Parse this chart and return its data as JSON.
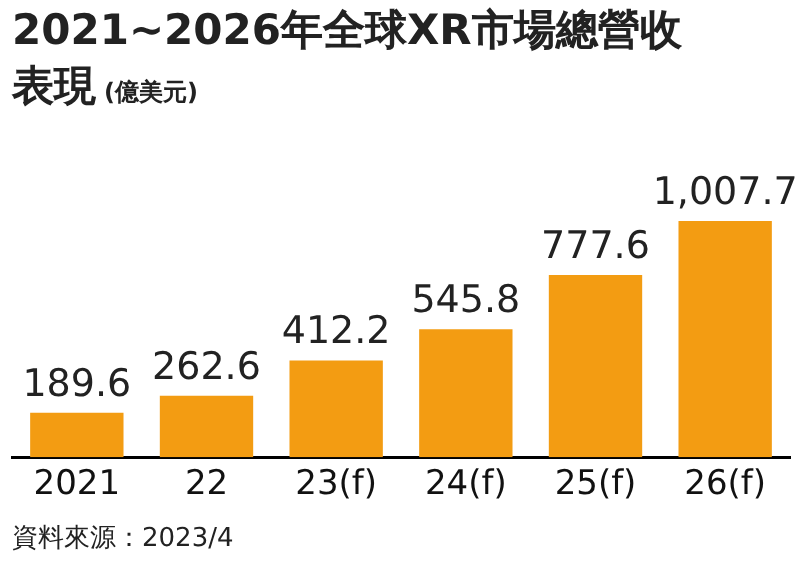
{
  "chart_data": {
    "type": "bar",
    "title": "2021~2026年全球XR市場總營收表現",
    "subtitle": "(億美元)",
    "categories": [
      "2021",
      "22",
      "23(f)",
      "24(f)",
      "25(f)",
      "26(f)"
    ],
    "values": [
      189.6,
      262.6,
      412.2,
      545.8,
      777.6,
      1007.7
    ],
    "value_labels": [
      "189.6",
      "262.6",
      "412.2",
      "545.8",
      "777.6",
      "1,007.7"
    ],
    "color": "#f39c12",
    "grid": false,
    "legend": false,
    "tick_labels": "x",
    "annotations": [
      "資料來源：2023/4"
    ]
  }
}
